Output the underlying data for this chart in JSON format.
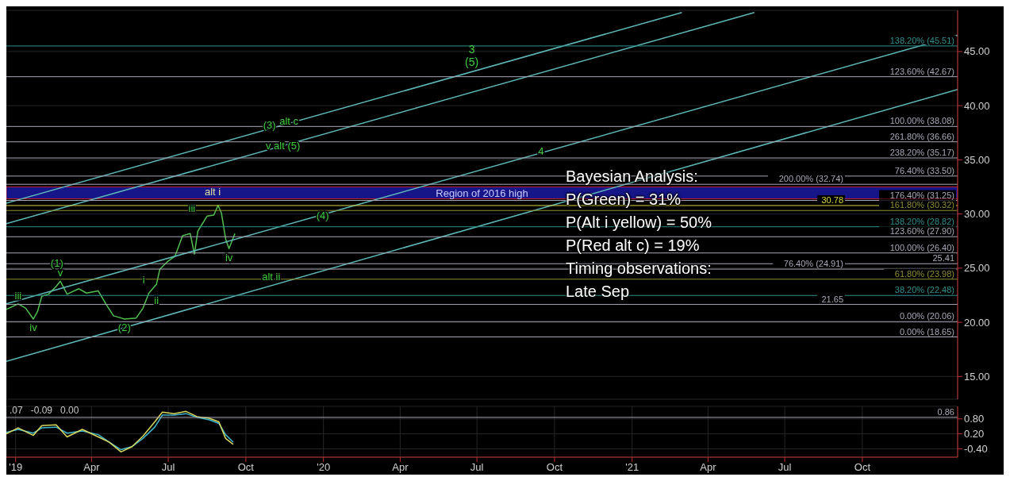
{
  "chart_data": [
    {
      "type": "line",
      "xlim": [
        "2018-12-21",
        "2022-01-22"
      ],
      "ylim": [
        12.9,
        48.8
      ],
      "xticks": [
        {
          "value": "2019-01-01",
          "label": null
        },
        {
          "value": "2019-04-01",
          "label": null
        },
        {
          "value": "2019-07-01",
          "label": null
        },
        {
          "value": "2019-10-01",
          "label": null
        },
        {
          "value": "2020-01-01",
          "label": null
        },
        {
          "value": "2020-04-01",
          "label": null
        },
        {
          "value": "2020-07-01",
          "label": null
        },
        {
          "value": "2020-10-01",
          "label": null
        },
        {
          "value": "2021-01-01",
          "label": null
        },
        {
          "value": "2021-04-01",
          "label": null
        },
        {
          "value": "2021-07-01",
          "label": null
        },
        {
          "value": "2021-10-01",
          "label": null
        }
      ],
      "yticks": [
        {
          "value": 15,
          "label": "15.00"
        },
        {
          "value": 20,
          "label": "20.00"
        },
        {
          "value": 25,
          "label": "25.00"
        },
        {
          "value": 30,
          "label": "30.00"
        },
        {
          "value": 35,
          "label": "35.00"
        },
        {
          "value": 40,
          "label": "40.00"
        },
        {
          "value": 45,
          "label": "45.00"
        }
      ],
      "tick_labels": "y",
      "grid": true,
      "legend": false,
      "marker": "none",
      "line_style": "solid",
      "series": [
        {
          "color": "#4fc04f",
          "x": [
            "2018-12-21",
            "2019-01-04",
            "2019-01-13",
            "2019-01-22",
            "2019-01-27",
            "2019-02-01",
            "2019-02-09",
            "2019-02-18",
            "2019-02-23",
            "2019-03-03",
            "2019-03-17",
            "2019-03-26",
            "2019-04-09",
            "2019-04-18",
            "2019-04-27",
            "2019-05-06",
            "2019-05-10",
            "2019-05-24",
            "2019-06-01",
            "2019-06-08",
            "2019-06-17",
            "2019-06-21",
            "2019-06-30",
            "2019-07-09",
            "2019-07-18",
            "2019-07-27",
            "2019-08-01",
            "2019-08-05",
            "2019-08-16",
            "2019-08-24",
            "2019-08-29",
            "2019-09-02",
            "2019-09-07",
            "2019-09-11",
            "2019-09-18"
          ],
          "values": [
            21.2,
            21.7,
            21.3,
            20.3,
            21.0,
            22.4,
            22.6,
            23.3,
            23.8,
            22.6,
            23.1,
            22.7,
            22.9,
            21.7,
            20.6,
            20.4,
            20.3,
            20.4,
            21.3,
            22.7,
            23.5,
            24.9,
            25.6,
            26.1,
            28.0,
            28.2,
            26.3,
            28.4,
            29.8,
            29.9,
            30.8,
            30.1,
            27.7,
            26.8,
            28.2
          ]
        },
        {
          "color": "#5fb8b8",
          "x": [
            "2018-12-21",
            "2021-03-01"
          ],
          "values": [
            31.0,
            48.6
          ]
        },
        {
          "color": "#5fb8b8",
          "x": [
            "2018-12-21",
            "2021-05-26"
          ],
          "values": [
            29.1,
            48.6
          ]
        },
        {
          "color": "#5fb8b8",
          "x": [
            "2018-12-21",
            "2022-01-22"
          ],
          "values": [
            21.7,
            46.5
          ]
        },
        {
          "color": "#5fb8b8",
          "x": [
            "2018-12-21",
            "2022-01-22"
          ],
          "values": [
            16.4,
            41.5
          ]
        }
      ],
      "ref_lines": [
        {
          "axis": "y",
          "value": 45.51,
          "label": "138.20% (45.51)",
          "color": "#2f8f8f"
        },
        {
          "axis": "y",
          "value": 42.67,
          "label": "123.60% (42.67)",
          "color": "#a8a8b8"
        },
        {
          "axis": "y",
          "value": 38.08,
          "label": "100.00% (38.08)",
          "color": "#a8a8b8"
        },
        {
          "axis": "y",
          "value": 36.66,
          "label": "261.80% (36.66)",
          "color": "#a8a8b8"
        },
        {
          "axis": "y",
          "value": 35.17,
          "label": "238.20% (35.17)",
          "color": "#a8a8b8"
        },
        {
          "axis": "y",
          "value": 33.5,
          "label": "76.40% (33.50)",
          "color": "#a8a8b8"
        },
        {
          "axis": "y",
          "value": 32.74,
          "label": "200.00% (32.74)",
          "color": "#a8a8b8"
        },
        {
          "axis": "y",
          "value": 31.25,
          "label": "176.40% (31.25)",
          "color": "#a8a8b8"
        },
        {
          "axis": "y",
          "value": 30.78,
          "label": "30.78",
          "color": "#d8d840"
        },
        {
          "axis": "y",
          "value": 30.32,
          "label": "161.80% (30.32)",
          "color": "#8f8f30"
        },
        {
          "axis": "y",
          "value": 28.82,
          "label": "138.20% (28.82)",
          "color": "#2f8f8f"
        },
        {
          "axis": "y",
          "value": 27.9,
          "label": "123.60% (27.90)",
          "color": "#a8a8b8"
        },
        {
          "axis": "y",
          "value": 26.4,
          "label": "100.00% (26.40)",
          "color": "#a8a8b8"
        },
        {
          "axis": "y",
          "value": 25.41,
          "label": "25.41",
          "color": "#a8a8b8"
        },
        {
          "axis": "y",
          "value": 24.91,
          "label": "76.40% (24.91)",
          "color": "#a8a8b8"
        },
        {
          "axis": "y",
          "value": 23.98,
          "label": "61.80% (23.98)",
          "color": "#8f8f30"
        },
        {
          "axis": "y",
          "value": 22.48,
          "label": "38.20% (22.48)",
          "color": "#2f8f8f"
        },
        {
          "axis": "y",
          "value": 21.65,
          "label": "21.65",
          "color": "#a8a8b8"
        },
        {
          "axis": "y",
          "value": 20.06,
          "label": "0.00% (20.06)",
          "color": "#a8a8b8"
        },
        {
          "axis": "y",
          "value": 18.65,
          "label": "0.00% (18.65)",
          "color": "#a8a8b8"
        }
      ],
      "bands": [
        {
          "axis": "y",
          "from": 31.4,
          "to": 32.5,
          "label": "Region of 2016 high",
          "color": "#1a1aa0"
        }
      ],
      "annotations": [
        "3",
        "(5)",
        {
          "text": "(3)",
          "x": "2019-10-29",
          "y": 38.2
        },
        {
          "text": "alt c",
          "x": "2019-11-21",
          "y": 38.6
        },
        {
          "text": "v alt (5)",
          "x": "2019-11-14",
          "y": 36.3
        },
        {
          "text": "4",
          "x": "2020-09-15",
          "y": 35.8
        },
        {
          "text": "(4)",
          "x": "2019-12-31",
          "y": 29.9
        },
        "alt i",
        {
          "text": "iii",
          "x": "2019-01-04",
          "y": 21.7
        },
        {
          "text": "iv",
          "x": "2019-01-22",
          "y": 20.3
        },
        {
          "text": "(1)",
          "x": "2019-02-19",
          "y": 25.5
        },
        {
          "text": "v",
          "x": "2019-02-23",
          "y": 23.8
        },
        {
          "text": "(2)",
          "x": "2019-05-10",
          "y": 20.3
        },
        {
          "text": "i",
          "x": "2019-06-02",
          "y": 23.9
        },
        {
          "text": "ii",
          "x": "2019-06-17",
          "y": 22.0
        },
        {
          "text": "alt ii",
          "x": "2019-10-31",
          "y": 24.2
        },
        {
          "text": "iii",
          "x": "2019-07-29",
          "y": 30.5
        },
        {
          "text": "iv",
          "x": "2019-09-11",
          "y": 26.8
        },
        "Bayesian Analysis:",
        "P(Green) = 31%",
        "P(Alt i yellow) = 50%",
        "P(Red alt c) = 19%",
        "Timing observations:",
        "Late Sep"
      ]
    },
    {
      "type": "line",
      "xlim": [
        "2018-12-21",
        "2022-01-22"
      ],
      "ylim": [
        -0.73,
        1.3
      ],
      "xticks": [
        {
          "value": "2019-01-01",
          "label": "'19"
        },
        {
          "value": "2019-04-01",
          "label": "Apr"
        },
        {
          "value": "2019-07-01",
          "label": "Jul"
        },
        {
          "value": "2019-10-01",
          "label": "Oct"
        },
        {
          "value": "2020-01-01",
          "label": "'20"
        },
        {
          "value": "2020-04-01",
          "label": "Apr"
        },
        {
          "value": "2020-07-01",
          "label": "Jul"
        },
        {
          "value": "2020-10-01",
          "label": "Oct"
        },
        {
          "value": "2021-01-01",
          "label": "'21"
        },
        {
          "value": "2021-04-01",
          "label": "Apr"
        },
        {
          "value": "2021-07-01",
          "label": "Jul"
        },
        {
          "value": "2021-10-01",
          "label": "Oct"
        }
      ],
      "yticks": [
        {
          "value": -0.4,
          "label": "-0.40"
        },
        {
          "value": 0.2,
          "label": "0.20"
        },
        {
          "value": 0.8,
          "label": "0.80"
        }
      ],
      "grid": true,
      "legend": false,
      "marker": "none",
      "line_style": "solid",
      "x": [
        "2018-12-21",
        "2019-01-04",
        "2019-01-22",
        "2019-02-01",
        "2019-02-18",
        "2019-03-03",
        "2019-03-21",
        "2019-04-09",
        "2019-04-22",
        "2019-05-06",
        "2019-05-19",
        "2019-06-01",
        "2019-06-15",
        "2019-06-24",
        "2019-07-08",
        "2019-07-22",
        "2019-08-04",
        "2019-08-18",
        "2019-08-30",
        "2019-09-07",
        "2019-09-16"
      ],
      "series": [
        {
          "color": "#3fb6d0",
          "values": [
            0.26,
            0.38,
            0.23,
            0.44,
            0.47,
            0.23,
            0.32,
            0.17,
            -0.13,
            -0.43,
            -0.31,
            0.02,
            0.47,
            0.95,
            0.95,
            1.01,
            0.86,
            0.77,
            0.62,
            0.17,
            -0.13
          ]
        },
        {
          "color": "#d8d860",
          "values": [
            0.2,
            0.44,
            0.14,
            0.53,
            0.56,
            0.08,
            0.38,
            0.08,
            -0.13,
            -0.52,
            -0.31,
            0.11,
            0.68,
            1.07,
            1.01,
            1.1,
            0.89,
            0.83,
            0.68,
            0.02,
            -0.22
          ]
        }
      ],
      "ref_lines": [
        {
          "axis": "y",
          "value": 0.86,
          "label": "0.86",
          "color": "#a8a8b8"
        }
      ],
      "annotations": [
        ".07",
        "-0.09",
        "0.00"
      ]
    }
  ]
}
